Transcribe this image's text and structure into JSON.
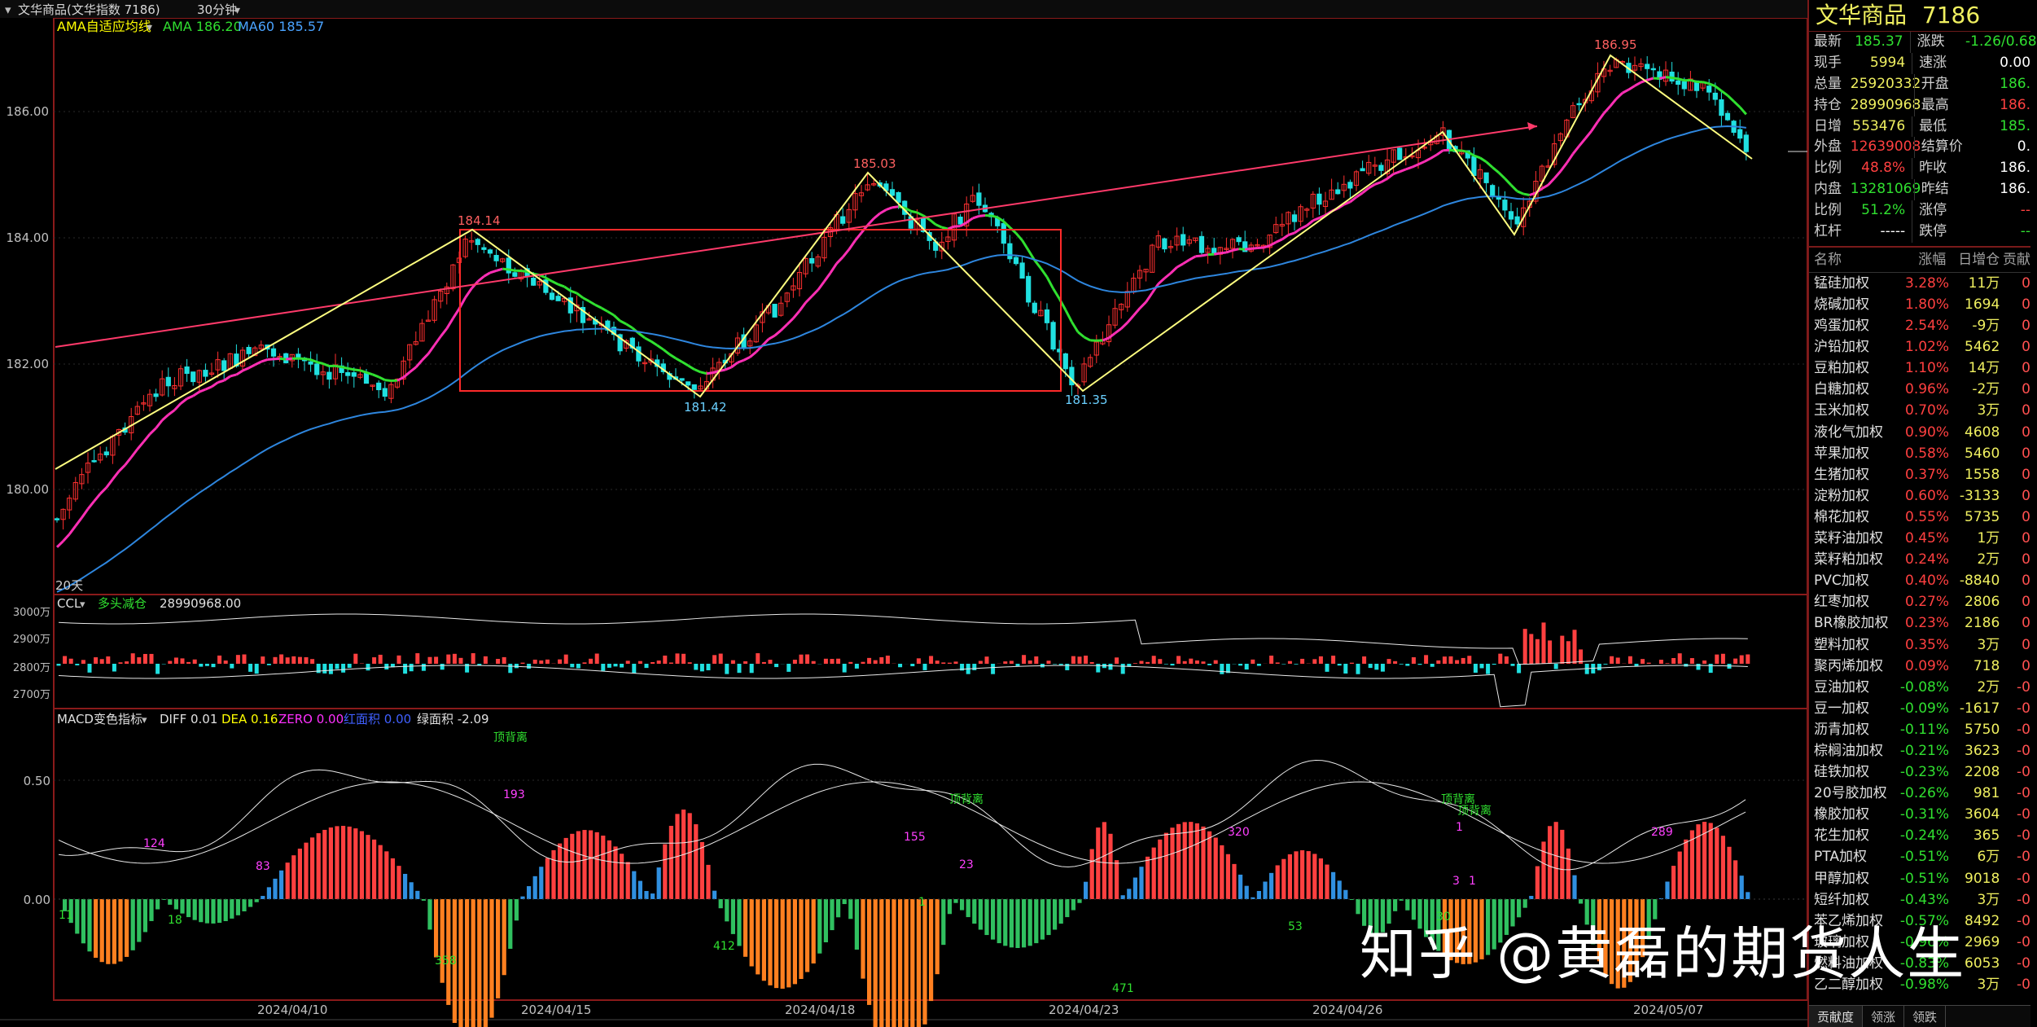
{
  "window": {
    "title": "文华商品(文华指数 7186)",
    "period": "30分钟",
    "title_arrow": "▾"
  },
  "main_panel": {
    "indicator_name": "AMA自适应均线",
    "ama_label": "AMA 186.20",
    "ma60_label": "MA60 185.57",
    "y_ticks": [
      "186.00",
      "184.00",
      "182.00",
      "180.00"
    ],
    "corner_label": "20天",
    "annotations": [
      "186.95",
      "185.03",
      "184.14",
      "181.42",
      "181.35"
    ],
    "colors": {
      "ama_up": "#ff2fb5",
      "ama_flat": "#30e030",
      "ma60": "#2e86de",
      "trend": "#ff3a6a",
      "zigzag": "#ffff80",
      "box": "#ff2a2a"
    }
  },
  "ccl_panel": {
    "name": "CCL",
    "subname": "多头减仓",
    "value": "28990968.00",
    "y_ticks": [
      "3000万",
      "2900万",
      "2800万",
      "2700万"
    ]
  },
  "macd_panel": {
    "name": "MACD变色指标",
    "diff": "DIFF 0.01",
    "dea": "DEA 0.16",
    "zero": "ZERO 0.00",
    "red_area": "红面积 0.00",
    "green_area": "绿面积 -2.09",
    "y_ticks": [
      "0.50",
      "0.00"
    ],
    "labels": [
      "11",
      "124",
      "18",
      "83",
      "358",
      "193",
      "412",
      "155",
      "23",
      "1",
      "471",
      "320",
      "53",
      "1",
      "3",
      "1",
      "30",
      "289"
    ],
    "divergence": [
      "顶背离",
      "顶背离",
      "顶背离",
      "顶背离"
    ]
  },
  "x_axis": {
    "dates": [
      "2024/04/10",
      "2024/04/15",
      "2024/04/18",
      "2024/04/23",
      "2024/04/26",
      "2024/05/07"
    ]
  },
  "quote": {
    "name": "文华商品",
    "code": "7186",
    "rows": [
      {
        "l1": "最新",
        "v1": "185.37",
        "c1": "dn",
        "l2": "涨跌",
        "v2": "-1.26/0.68",
        "c2": "dn"
      },
      {
        "l1": "现手",
        "v1": "5994",
        "c1": "yl",
        "l2": "速涨",
        "v2": "0.00",
        "c2": "wh"
      },
      {
        "l1": "总量",
        "v1": "25920332",
        "c1": "yl",
        "l2": "开盘",
        "v2": "186.",
        "c2": "dn"
      },
      {
        "l1": "持仓",
        "v1": "28990968",
        "c1": "yl",
        "l2": "最高",
        "v2": "186.",
        "c2": "up"
      },
      {
        "l1": "日增",
        "v1": "553476",
        "c1": "yl",
        "l2": "最低",
        "v2": "185.",
        "c2": "dn"
      },
      {
        "l1": "外盘",
        "v1": "12639008",
        "c1": "up",
        "l2": "结算价",
        "v2": "0.",
        "c2": "wh"
      },
      {
        "l1": "比例",
        "v1": "48.8%",
        "c1": "up",
        "l2": "昨收",
        "v2": "186.",
        "c2": "wh"
      },
      {
        "l1": "内盘",
        "v1": "13281069",
        "c1": "dn",
        "l2": "昨结",
        "v2": "186.",
        "c2": "wh"
      },
      {
        "l1": "比例",
        "v1": "51.2%",
        "c1": "dn",
        "l2": "涨停",
        "v2": "--",
        "c2": "up"
      },
      {
        "l1": "杠杆",
        "v1": "-----",
        "c1": "wh",
        "l2": "跌停",
        "v2": "--",
        "c2": "dn"
      }
    ]
  },
  "list": {
    "headers": [
      "名称",
      "涨幅",
      "日增仓",
      "贡献"
    ],
    "items": [
      {
        "name": "锰硅加权",
        "pct": "3.28%",
        "dir": "up",
        "oi": "11万",
        "x": "0"
      },
      {
        "name": "烧碱加权",
        "pct": "1.80%",
        "dir": "up",
        "oi": "1694",
        "x": "0"
      },
      {
        "name": "鸡蛋加权",
        "pct": "2.54%",
        "dir": "up",
        "oi": "-9万",
        "x": "0"
      },
      {
        "name": "沪铅加权",
        "pct": "1.02%",
        "dir": "up",
        "oi": "5462",
        "x": "0"
      },
      {
        "name": "豆粕加权",
        "pct": "1.10%",
        "dir": "up",
        "oi": "14万",
        "x": "0"
      },
      {
        "name": "白糖加权",
        "pct": "0.96%",
        "dir": "up",
        "oi": "-2万",
        "x": "0"
      },
      {
        "name": "玉米加权",
        "pct": "0.70%",
        "dir": "up",
        "oi": "3万",
        "x": "0"
      },
      {
        "name": "液化气加权",
        "pct": "0.90%",
        "dir": "up",
        "oi": "4608",
        "x": "0"
      },
      {
        "name": "苹果加权",
        "pct": "0.58%",
        "dir": "up",
        "oi": "5460",
        "x": "0"
      },
      {
        "name": "生猪加权",
        "pct": "0.37%",
        "dir": "up",
        "oi": "1558",
        "x": "0"
      },
      {
        "name": "淀粉加权",
        "pct": "0.60%",
        "dir": "up",
        "oi": "-3133",
        "x": "0"
      },
      {
        "name": "棉花加权",
        "pct": "0.55%",
        "dir": "up",
        "oi": "5735",
        "x": "0"
      },
      {
        "name": "菜籽油加权",
        "pct": "0.45%",
        "dir": "up",
        "oi": "1万",
        "x": "0"
      },
      {
        "name": "菜籽粕加权",
        "pct": "0.24%",
        "dir": "up",
        "oi": "2万",
        "x": "0"
      },
      {
        "name": "PVC加权",
        "pct": "0.40%",
        "dir": "up",
        "oi": "-8840",
        "x": "0"
      },
      {
        "name": "红枣加权",
        "pct": "0.27%",
        "dir": "up",
        "oi": "2806",
        "x": "0"
      },
      {
        "name": "BR橡胶加权",
        "pct": "0.23%",
        "dir": "up",
        "oi": "2186",
        "x": "0"
      },
      {
        "name": "塑料加权",
        "pct": "0.35%",
        "dir": "up",
        "oi": "3万",
        "x": "0"
      },
      {
        "name": "聚丙烯加权",
        "pct": "0.09%",
        "dir": "up",
        "oi": "718",
        "x": "0"
      },
      {
        "name": "豆油加权",
        "pct": "-0.08%",
        "dir": "dn",
        "oi": "2万",
        "x": "-0"
      },
      {
        "name": "豆一加权",
        "pct": "-0.09%",
        "dir": "dn",
        "oi": "-1617",
        "x": "-0"
      },
      {
        "name": "沥青加权",
        "pct": "-0.11%",
        "dir": "dn",
        "oi": "5750",
        "x": "-0"
      },
      {
        "name": "棕榈油加权",
        "pct": "-0.21%",
        "dir": "dn",
        "oi": "3623",
        "x": "-0"
      },
      {
        "name": "硅铁加权",
        "pct": "-0.23%",
        "dir": "dn",
        "oi": "2208",
        "x": "-0"
      },
      {
        "name": "20号胶加权",
        "pct": "-0.26%",
        "dir": "dn",
        "oi": "981",
        "x": "-0"
      },
      {
        "name": "橡胶加权",
        "pct": "-0.31%",
        "dir": "dn",
        "oi": "3604",
        "x": "-0"
      },
      {
        "name": "花生加权",
        "pct": "-0.24%",
        "dir": "dn",
        "oi": "365",
        "x": "-0"
      },
      {
        "name": "PTA加权",
        "pct": "-0.51%",
        "dir": "dn",
        "oi": "6万",
        "x": "-0"
      },
      {
        "name": "甲醇加权",
        "pct": "-0.51%",
        "dir": "dn",
        "oi": "9018",
        "x": "-0"
      },
      {
        "name": "短纤加权",
        "pct": "-0.43%",
        "dir": "dn",
        "oi": "3万",
        "x": "-0"
      },
      {
        "name": "苯乙烯加权",
        "pct": "-0.57%",
        "dir": "dn",
        "oi": "8492",
        "x": "-0"
      },
      {
        "name": "玻璃加权",
        "pct": "-0.96%",
        "dir": "dn",
        "oi": "2969",
        "x": "-0"
      },
      {
        "name": "燃料油加权",
        "pct": "-0.83%",
        "dir": "dn",
        "oi": "6053",
        "x": "-0"
      },
      {
        "name": "乙二醇加权",
        "pct": "-0.98%",
        "dir": "dn",
        "oi": "3万",
        "x": "-0"
      }
    ],
    "tabs": [
      "贡献度",
      "领涨",
      "领跌"
    ]
  },
  "watermark": "知乎 @黄磊的期货人生"
}
